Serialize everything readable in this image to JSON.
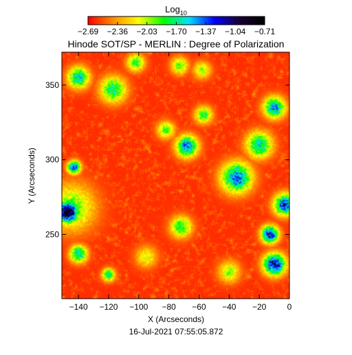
{
  "chart_data": {
    "type": "heatmap",
    "title": "Hinode SOT/SP - MERLIN : Degree of Polarization",
    "xlabel": "X (Arcseconds)",
    "ylabel": "Y (Arcseconds)",
    "timestamp": "16-Jul-2021 07:55:05.872",
    "colorbar": {
      "label_main": "Log",
      "label_sub": "10",
      "range": [
        -2.69,
        -0.71
      ],
      "tick_labels": [
        "-2.69",
        "-2.36",
        "-2.03",
        "-1.70",
        "-1.37",
        "-1.04",
        "-0.71"
      ],
      "colormap": [
        "#ff0000",
        "#ff8c00",
        "#ffff00",
        "#00ff00",
        "#00e0ff",
        "#0000ff",
        "#1a0033",
        "#000000"
      ]
    },
    "x_axis": {
      "range": [
        -151,
        0
      ],
      "ticks": [
        -140,
        -120,
        -100,
        -80,
        -60,
        -40,
        -20,
        0
      ],
      "tick_labels": [
        "−140",
        "−120",
        "−100",
        "−80",
        "−60",
        "−40",
        "−20",
        "0"
      ]
    },
    "y_axis": {
      "range": [
        207,
        372
      ],
      "ticks": [
        250,
        300,
        350
      ],
      "tick_labels": [
        "250",
        "300",
        "350"
      ]
    },
    "background_level": -2.6,
    "features": [
      {
        "name": "dark-spot",
        "x": -147,
        "y": 265,
        "sigma": 5,
        "peak": -0.71
      },
      {
        "name": "spot-halo",
        "x": -145,
        "y": 268,
        "sigma": 11,
        "peak": -1.9
      },
      {
        "name": "blob-left-upper",
        "x": -143,
        "y": 295,
        "sigma": 3,
        "peak": -1.3
      },
      {
        "name": "blob-top-left-1",
        "x": -117,
        "y": 347,
        "sigma": 6,
        "peak": -1.7
      },
      {
        "name": "blob-top-left-2",
        "x": -140,
        "y": 355,
        "sigma": 5,
        "peak": -1.6
      },
      {
        "name": "blob-top-center",
        "x": -102,
        "y": 365,
        "sigma": 4,
        "peak": -1.8
      },
      {
        "name": "blob-top-mid",
        "x": -73,
        "y": 363,
        "sigma": 4,
        "peak": -1.9
      },
      {
        "name": "blob-center-1",
        "x": -68,
        "y": 309,
        "sigma": 5,
        "peak": -1.4
      },
      {
        "name": "blob-center-2",
        "x": -57,
        "y": 330,
        "sigma": 4,
        "peak": -1.8
      },
      {
        "name": "blob-center-3",
        "x": -82,
        "y": 320,
        "sigma": 4,
        "peak": -1.9
      },
      {
        "name": "blob-right-top",
        "x": -10,
        "y": 335,
        "sigma": 5,
        "peak": -1.5
      },
      {
        "name": "blob-right-mid",
        "x": -20,
        "y": 310,
        "sigma": 6,
        "peak": -1.6
      },
      {
        "name": "blob-right-center",
        "x": -35,
        "y": 288,
        "sigma": 7,
        "peak": -1.4
      },
      {
        "name": "blob-right-edge",
        "x": -3,
        "y": 270,
        "sigma": 5,
        "peak": -1.3
      },
      {
        "name": "blob-right-low-1",
        "x": -13,
        "y": 250,
        "sigma": 4,
        "peak": -1.2
      },
      {
        "name": "blob-right-low-2",
        "x": -10,
        "y": 230,
        "sigma": 5,
        "peak": -1.1
      },
      {
        "name": "blob-mid-low",
        "x": -72,
        "y": 255,
        "sigma": 5,
        "peak": -1.8
      },
      {
        "name": "blob-left-low-1",
        "x": -140,
        "y": 237,
        "sigma": 4,
        "peak": -1.6
      },
      {
        "name": "blob-left-low-2",
        "x": -120,
        "y": 223,
        "sigma": 3,
        "peak": -1.7
      },
      {
        "name": "blob-mid-right-low",
        "x": -40,
        "y": 225,
        "sigma": 5,
        "peak": -2.0
      },
      {
        "name": "blob-upper-mid",
        "x": -58,
        "y": 360,
        "sigma": 4,
        "peak": -2.0
      },
      {
        "name": "blob-lower-center",
        "x": -95,
        "y": 235,
        "sigma": 5,
        "peak": -2.1
      }
    ]
  }
}
